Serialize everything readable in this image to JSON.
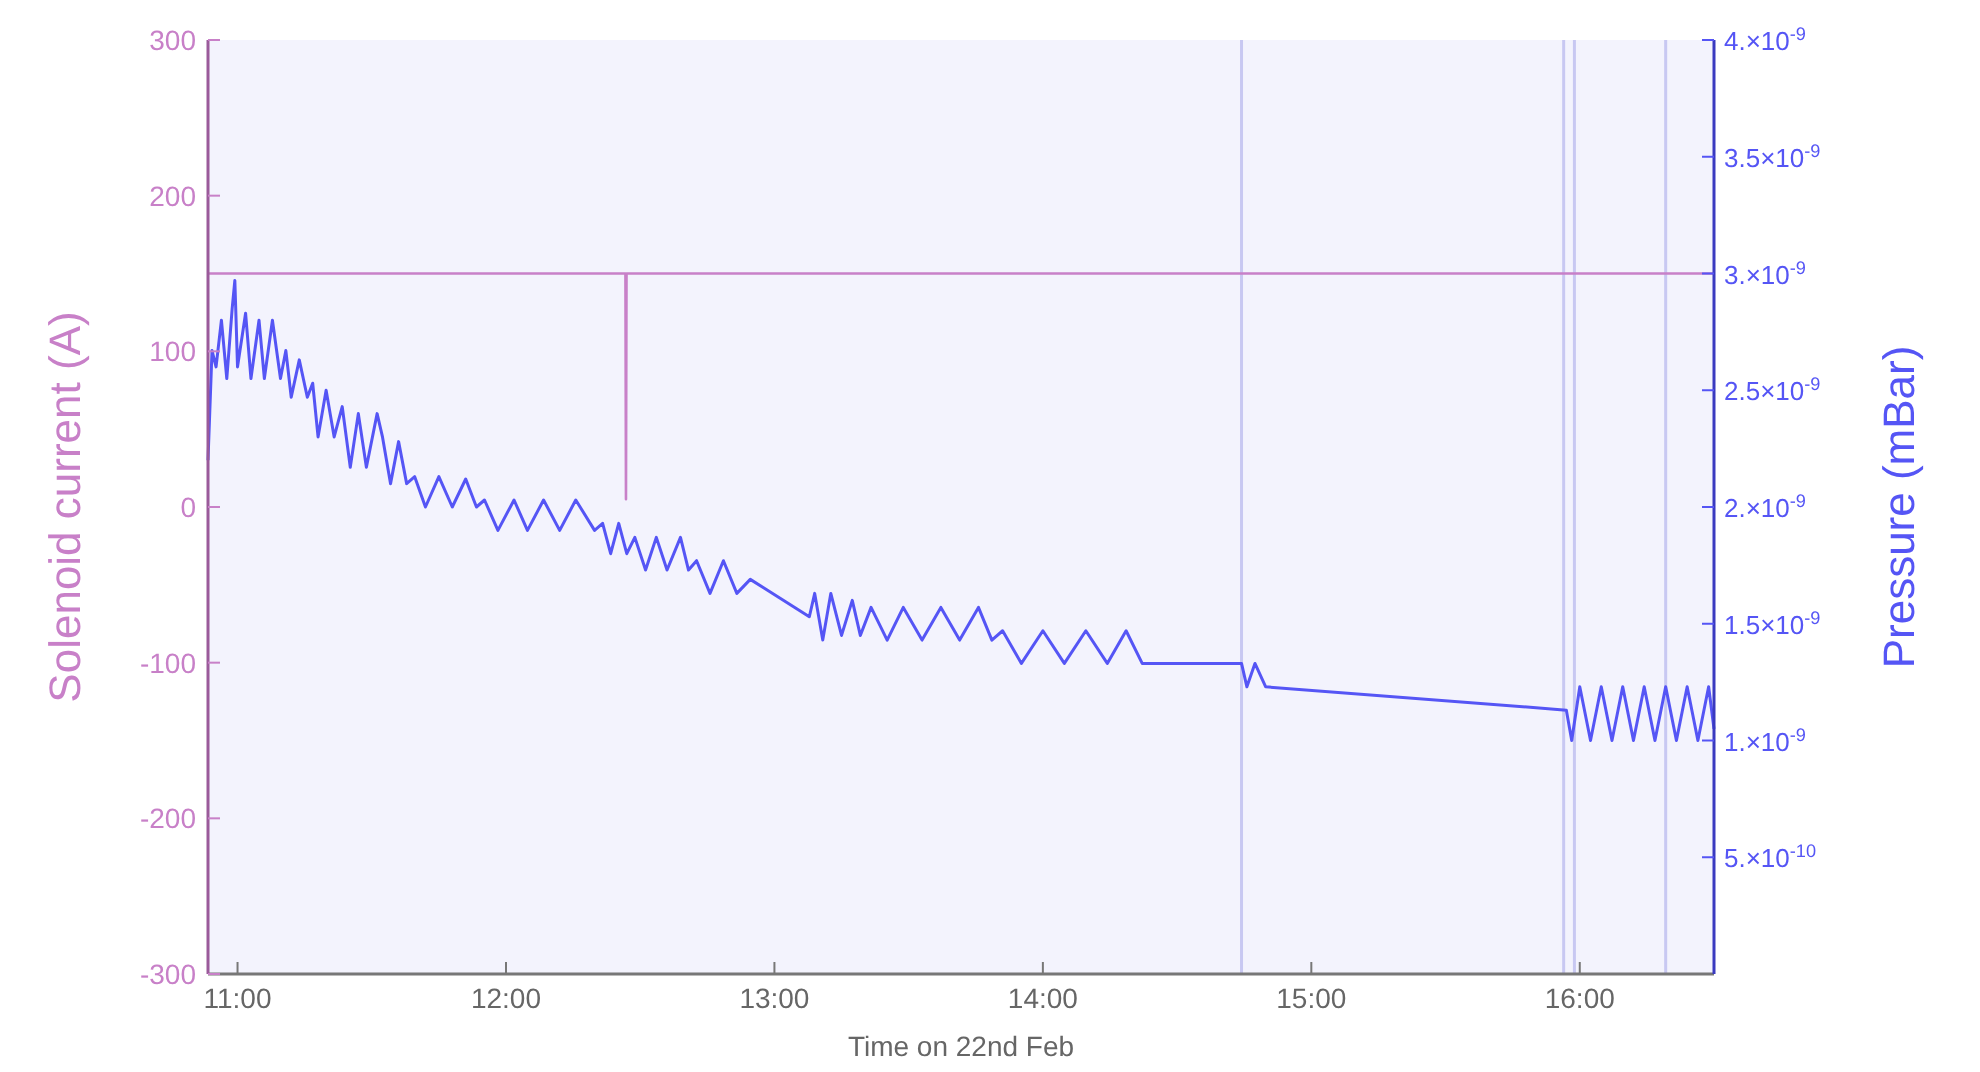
{
  "chart_data": {
    "type": "line",
    "xlabel": "Time on 22nd Feb",
    "ylabel": "Solenoid current (A)",
    "y2label": "Pressure (mBar)",
    "xlim": [
      10.89,
      16.5
    ],
    "xticks": [
      {
        "value": 11,
        "label": "11:00"
      },
      {
        "value": 12,
        "label": "12:00"
      },
      {
        "value": 13,
        "label": "13:00"
      },
      {
        "value": 14,
        "label": "14:00"
      },
      {
        "value": 15,
        "label": "15:00"
      },
      {
        "value": 16,
        "label": "16:00"
      }
    ],
    "ylim": [
      -300,
      300
    ],
    "yticks": [
      -300,
      -200,
      -100,
      0,
      100,
      200,
      300
    ],
    "y2lim": [
      0,
      4e-09
    ],
    "y2ticks": [
      {
        "value": 5e-10,
        "label": "5.×10$^{-10}$"
      },
      {
        "value": 1e-09,
        "label": "1.×10$^{-9}$"
      },
      {
        "value": 1.5e-09,
        "label": "1.5×10$^{-9}$"
      },
      {
        "value": 2e-09,
        "label": "2.×10$^{-9}$"
      },
      {
        "value": 2.5e-09,
        "label": "2.5×10$^{-9}$"
      },
      {
        "value": 3e-09,
        "label": "3.×10$^{-9}$"
      },
      {
        "value": 3.5e-09,
        "label": "3.5×10$^{-9}$"
      },
      {
        "value": 4e-09,
        "label": "4.×10$^{-9}$"
      }
    ],
    "grid": false,
    "ref_lines": [
      {
        "axis": "x",
        "value": 14.74,
        "color": "#c8c8f2"
      },
      {
        "axis": "x",
        "value": 15.94,
        "color": "#c8c8f2"
      },
      {
        "axis": "x",
        "value": 15.98,
        "color": "#c8c8f2"
      },
      {
        "axis": "x",
        "value": 16.32,
        "color": "#c8c8f2"
      }
    ],
    "series": [
      {
        "color": "#c880c8",
        "x": [
          10.89,
          12.445,
          12.447,
          12.449,
          16.5
        ],
        "values": [
          150,
          150,
          5,
          150,
          150
        ]
      },
      {
        "color": "#5555f5",
        "axis": "y2",
        "x": [
          10.89,
          10.905,
          10.92,
          10.94,
          10.96,
          10.98,
          10.99,
          11.0,
          11.03,
          11.05,
          11.08,
          11.1,
          11.13,
          11.16,
          11.18,
          11.2,
          11.23,
          11.26,
          11.28,
          11.3,
          11.33,
          11.36,
          11.39,
          11.42,
          11.45,
          11.48,
          11.52,
          11.54,
          11.57,
          11.6,
          11.63,
          11.66,
          11.7,
          11.75,
          11.8,
          11.85,
          11.89,
          11.92,
          11.97,
          12.03,
          12.08,
          12.14,
          12.2,
          12.26,
          12.33,
          12.36,
          12.39,
          12.42,
          12.45,
          12.48,
          12.52,
          12.56,
          12.6,
          12.65,
          12.68,
          12.71,
          12.76,
          12.81,
          12.86,
          12.91,
          13.13,
          13.15,
          13.18,
          13.21,
          13.25,
          13.29,
          13.32,
          13.36,
          13.42,
          13.48,
          13.55,
          13.62,
          13.69,
          13.76,
          13.81,
          13.85,
          13.92,
          14.0,
          14.08,
          14.16,
          14.24,
          14.31,
          14.37,
          14.74,
          14.76,
          14.79,
          14.83,
          15.95,
          15.97,
          16.0,
          16.04,
          16.08,
          16.12,
          16.16,
          16.2,
          16.24,
          16.28,
          16.32,
          16.36,
          16.4,
          16.44,
          16.48,
          16.5
        ],
        "values": [
          2.2e-09,
          2.67e-09,
          2.6e-09,
          2.8e-09,
          2.55e-09,
          2.85e-09,
          2.97e-09,
          2.6e-09,
          2.83e-09,
          2.55e-09,
          2.8e-09,
          2.55e-09,
          2.8e-09,
          2.55e-09,
          2.67e-09,
          2.47e-09,
          2.63e-09,
          2.47e-09,
          2.53e-09,
          2.3e-09,
          2.5e-09,
          2.3e-09,
          2.43e-09,
          2.17e-09,
          2.4e-09,
          2.17e-09,
          2.4e-09,
          2.3e-09,
          2.1e-09,
          2.28e-09,
          2.1e-09,
          2.13e-09,
          2e-09,
          2.13e-09,
          2e-09,
          2.12e-09,
          2e-09,
          2.03e-09,
          1.9e-09,
          2.03e-09,
          1.9e-09,
          2.03e-09,
          1.9e-09,
          2.03e-09,
          1.9e-09,
          1.93e-09,
          1.8e-09,
          1.93e-09,
          1.8e-09,
          1.87e-09,
          1.73e-09,
          1.87e-09,
          1.73e-09,
          1.87e-09,
          1.73e-09,
          1.77e-09,
          1.63e-09,
          1.77e-09,
          1.63e-09,
          1.69e-09,
          1.53e-09,
          1.63e-09,
          1.43e-09,
          1.63e-09,
          1.45e-09,
          1.6e-09,
          1.45e-09,
          1.57e-09,
          1.43e-09,
          1.57e-09,
          1.43e-09,
          1.57e-09,
          1.43e-09,
          1.57e-09,
          1.43e-09,
          1.47e-09,
          1.33e-09,
          1.47e-09,
          1.33e-09,
          1.47e-09,
          1.33e-09,
          1.47e-09,
          1.33e-09,
          1.33e-09,
          1.23e-09,
          1.33e-09,
          1.23e-09,
          1.13e-09,
          1e-09,
          1.23e-09,
          1e-09,
          1.23e-09,
          1e-09,
          1.23e-09,
          1e-09,
          1.23e-09,
          1e-09,
          1.23e-09,
          1e-09,
          1.23e-09,
          1e-09,
          1.23e-09,
          1.05e-09
        ]
      }
    ]
  }
}
